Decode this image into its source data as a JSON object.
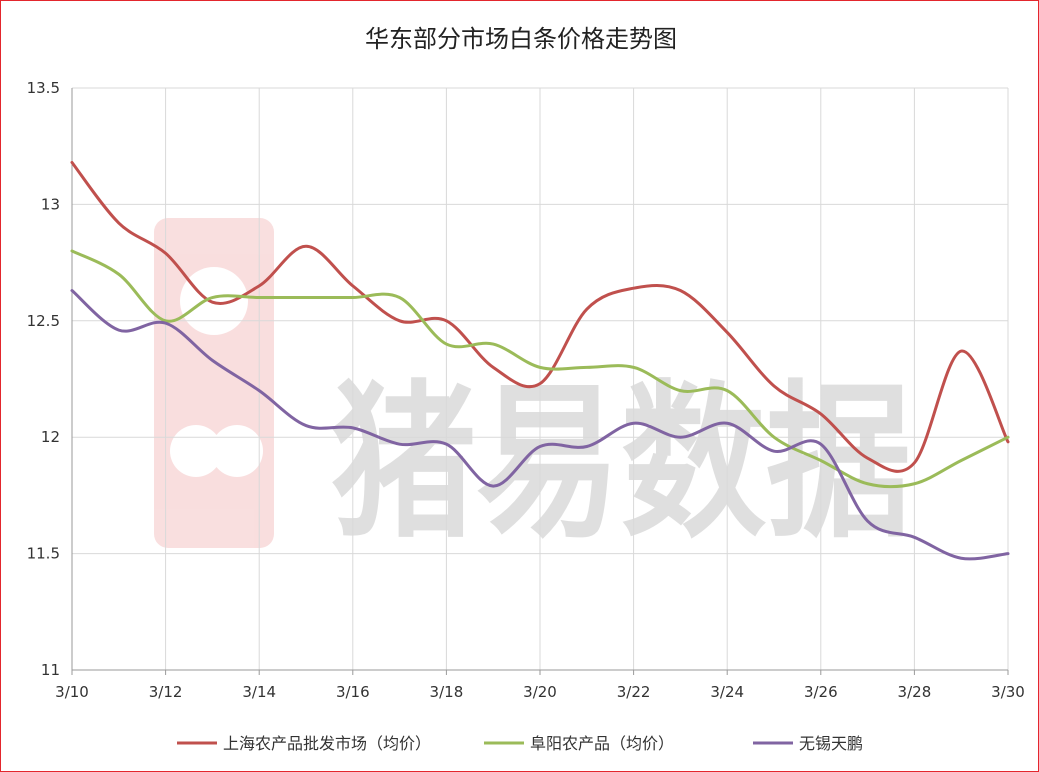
{
  "chart_data": {
    "type": "line",
    "title": "华东部分市场白条价格走势图",
    "x": [
      "3/10",
      "3/11",
      "3/12",
      "3/13",
      "3/14",
      "3/15",
      "3/16",
      "3/17",
      "3/18",
      "3/19",
      "3/20",
      "3/21",
      "3/22",
      "3/23",
      "3/24",
      "3/25",
      "3/26",
      "3/27",
      "3/28",
      "3/29",
      "3/30"
    ],
    "x_tick_labels": [
      "3/10",
      "3/12",
      "3/14",
      "3/16",
      "3/18",
      "3/20",
      "3/22",
      "3/24",
      "3/26",
      "3/28",
      "3/30"
    ],
    "ylim": [
      11,
      13.5
    ],
    "y_ticks": [
      "11",
      "11.5",
      "12",
      "12.5",
      "13",
      "13.5"
    ],
    "grid": true,
    "legend_position": "bottom",
    "series": [
      {
        "name": "上海农产品批发市场（均价）",
        "color": "#c0504d",
        "values": [
          13.18,
          12.92,
          12.79,
          12.58,
          12.65,
          12.82,
          12.65,
          12.5,
          12.5,
          12.3,
          12.23,
          12.55,
          12.64,
          12.63,
          12.45,
          12.22,
          12.1,
          11.91,
          11.89,
          12.37,
          11.98
        ]
      },
      {
        "name": "阜阳农产品（均价）",
        "color": "#9bbb59",
        "values": [
          12.8,
          12.7,
          12.5,
          12.6,
          12.6,
          12.6,
          12.6,
          12.6,
          12.4,
          12.4,
          12.3,
          12.3,
          12.3,
          12.2,
          12.2,
          12.0,
          11.9,
          11.8,
          11.8,
          11.9,
          12.0
        ]
      },
      {
        "name": "无锡天鹏",
        "color": "#8064a2",
        "values": [
          12.63,
          12.46,
          12.49,
          12.33,
          12.2,
          12.05,
          12.04,
          11.97,
          11.97,
          11.79,
          11.96,
          11.96,
          12.06,
          12.0,
          12.06,
          11.94,
          11.97,
          11.64,
          11.57,
          11.48,
          11.5
        ]
      }
    ]
  },
  "watermark": {
    "text": "猪易数据",
    "logo_color": "#e05050"
  }
}
